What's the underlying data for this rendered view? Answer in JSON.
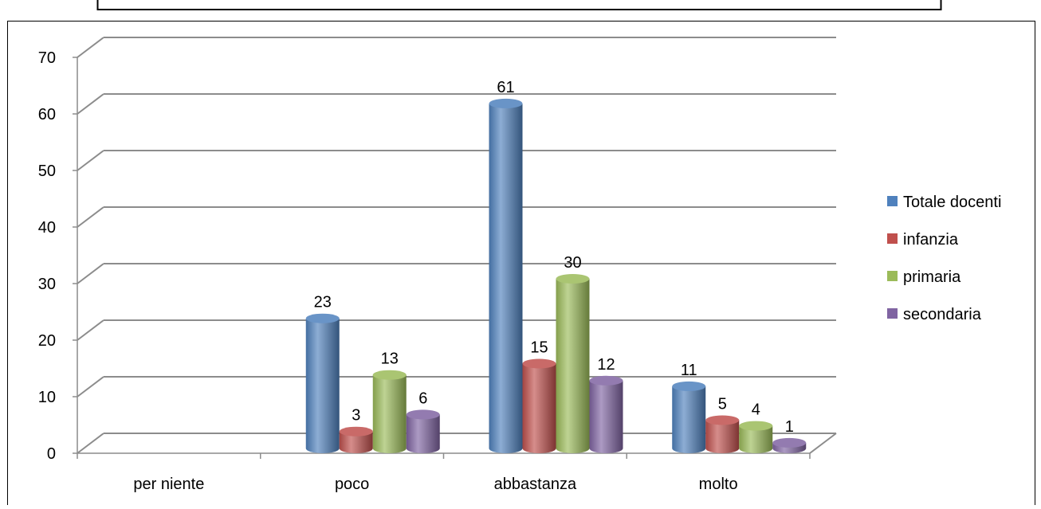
{
  "colors": {
    "Totale docenti": "#4F81BD",
    "infanzia": "#C0504D",
    "primaria": "#9BBB59",
    "secondaria": "#8064A2",
    "grid": "#8C8C8C",
    "frame": "#000000"
  },
  "chart_data": {
    "type": "bar",
    "three_d": true,
    "categories": [
      "per niente",
      "poco",
      "abbastanza",
      "molto"
    ],
    "series": [
      {
        "name": "Totale docenti",
        "values": [
          null,
          23,
          61,
          11
        ]
      },
      {
        "name": "infanzia",
        "values": [
          null,
          3,
          15,
          5
        ]
      },
      {
        "name": "primaria",
        "values": [
          null,
          13,
          30,
          4
        ]
      },
      {
        "name": "secondaria",
        "values": [
          null,
          6,
          12,
          1
        ]
      }
    ],
    "ylim": [
      0,
      70
    ],
    "yticks": [
      0,
      10,
      20,
      30,
      40,
      50,
      60,
      70
    ],
    "grid": true,
    "legend": "right",
    "data_labels": true
  }
}
